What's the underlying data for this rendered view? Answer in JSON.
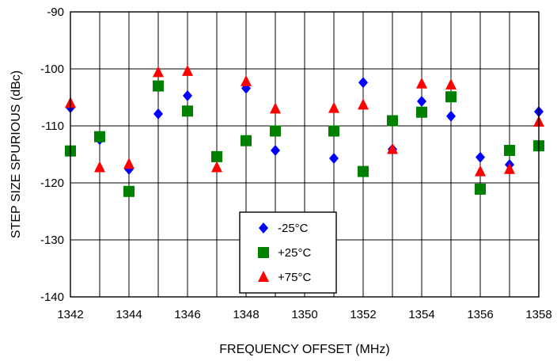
{
  "chart_data": {
    "type": "scatter",
    "xlabel": "FREQUENCY OFFSET (MHz)",
    "ylabel": "STEP SIZE SPURIOUS (dBc)",
    "xlim": [
      1342,
      1358
    ],
    "ylim": [
      -140,
      -90
    ],
    "xticks": [
      "1342",
      "1344",
      "1346",
      "1348",
      "1350",
      "1352",
      "1354",
      "1356",
      "1358"
    ],
    "yticks": [
      "-90",
      "-100",
      "-110",
      "-120",
      "-130",
      "-140"
    ],
    "x_gridlines_every": 1,
    "y_gridlines_every": 10,
    "legend_position": "bottom-center",
    "series": [
      {
        "name": "-25°C",
        "marker": "diamond",
        "color": "#0000ff",
        "x": [
          1342,
          1343,
          1344,
          1345,
          1346,
          1348,
          1349,
          1351,
          1352,
          1353,
          1354,
          1355,
          1356,
          1357,
          1358
        ],
        "y": [
          -106.8,
          -112.4,
          -117.6,
          -107.9,
          -104.7,
          -103.4,
          -114.3,
          -115.7,
          -102.4,
          -114.1,
          -105.7,
          -108.3,
          -115.5,
          -116.8,
          -107.5
        ]
      },
      {
        "name": "+25°C",
        "marker": "square",
        "color": "#008000",
        "x": [
          1342,
          1343,
          1344,
          1345,
          1346,
          1347,
          1348,
          1349,
          1351,
          1352,
          1353,
          1354,
          1355,
          1356,
          1357,
          1358
        ],
        "y": [
          -114.4,
          -111.9,
          -121.5,
          -103.0,
          -107.4,
          -115.4,
          -112.6,
          -110.9,
          -110.9,
          -118.0,
          -109.1,
          -107.6,
          -104.9,
          -121.1,
          -114.3,
          -113.5
        ]
      },
      {
        "name": "+75°C",
        "marker": "triangle",
        "color": "#ff0000",
        "x": [
          1342,
          1343,
          1344,
          1345,
          1346,
          1347,
          1348,
          1349,
          1351,
          1352,
          1353,
          1354,
          1355,
          1356,
          1357,
          1358
        ],
        "y": [
          -106.0,
          -117.3,
          -116.7,
          -100.6,
          -100.4,
          -117.3,
          -102.2,
          -107.0,
          -106.9,
          -106.3,
          -114.1,
          -102.6,
          -102.8,
          -118.0,
          -117.6,
          -109.3
        ]
      }
    ]
  }
}
